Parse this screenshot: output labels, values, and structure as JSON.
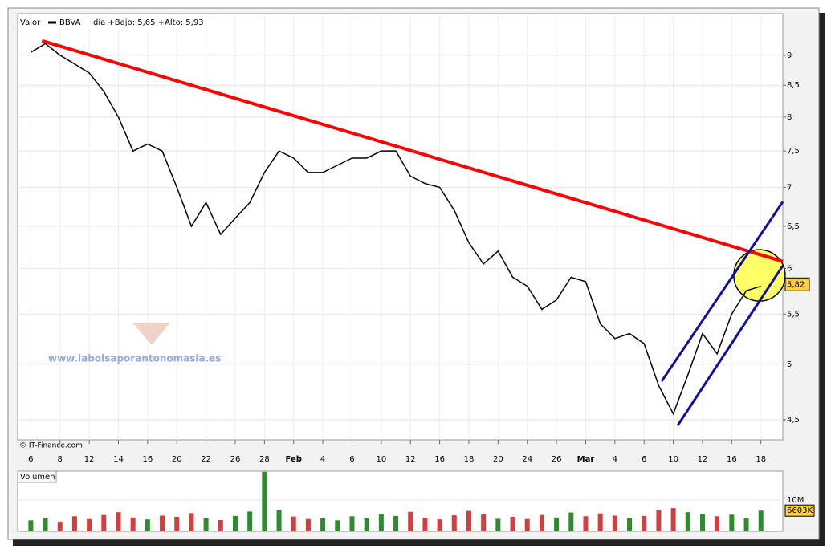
{
  "chart_data": [
    {
      "type": "line",
      "header_label": "Valor",
      "title": "BBVA",
      "subtitle": "día +Bajo: 5,65 +Alto: 5,93",
      "credit": "© IT-Finance.com",
      "watermark": "www.labolsaporantonomasia.es",
      "log_scale": true,
      "grid": true,
      "x": [
        0,
        1,
        2,
        3,
        4,
        5,
        6,
        7,
        8,
        9,
        10,
        11,
        12,
        13,
        14,
        15,
        16,
        17,
        18,
        19,
        20,
        21,
        22,
        23,
        24,
        25,
        26,
        27,
        28,
        29,
        30,
        31,
        32,
        33,
        34,
        35,
        36,
        37,
        38,
        39,
        40,
        41,
        42,
        43,
        44,
        45,
        46,
        47,
        48,
        49,
        50
      ],
      "xlim": [
        -0.9,
        51.5
      ],
      "xticks": [
        {
          "value": 0,
          "label": "6"
        },
        {
          "value": 2,
          "label": "8"
        },
        {
          "value": 4,
          "label": "12"
        },
        {
          "value": 6,
          "label": "14"
        },
        {
          "value": 8,
          "label": "16"
        },
        {
          "value": 10,
          "label": "20"
        },
        {
          "value": 12,
          "label": "22"
        },
        {
          "value": 14,
          "label": "26"
        },
        {
          "value": 16,
          "label": "28"
        },
        {
          "value": 18,
          "label": "Feb"
        },
        {
          "value": 20,
          "label": "4"
        },
        {
          "value": 22,
          "label": "6"
        },
        {
          "value": 24,
          "label": "10"
        },
        {
          "value": 26,
          "label": "12"
        },
        {
          "value": 28,
          "label": "16"
        },
        {
          "value": 30,
          "label": "18"
        },
        {
          "value": 32,
          "label": "20"
        },
        {
          "value": 34,
          "label": "24"
        },
        {
          "value": 36,
          "label": "26"
        },
        {
          "value": 38,
          "label": "Mar"
        },
        {
          "value": 40,
          "label": "4"
        },
        {
          "value": 42,
          "label": "6"
        },
        {
          "value": 44,
          "label": "10"
        },
        {
          "value": 46,
          "label": "12"
        },
        {
          "value": 48,
          "label": "16"
        },
        {
          "value": 50,
          "label": "18"
        }
      ],
      "ylim": [
        4.33,
        9.74
      ],
      "yticks": [
        {
          "value": 4.5,
          "label": "4,5"
        },
        5,
        {
          "value": 5.5,
          "label": "5,5"
        },
        6,
        {
          "value": 6.5,
          "label": "6,5"
        },
        7,
        {
          "value": 7.5,
          "label": "7,5"
        },
        8,
        {
          "value": 8.5,
          "label": "8,5"
        },
        9
      ],
      "series": [
        {
          "name": "BBVA",
          "color": "#000000",
          "values": [
            9.05,
            9.2,
            9.0,
            8.85,
            8.7,
            8.4,
            8.0,
            7.5,
            7.6,
            7.5,
            7.0,
            6.5,
            6.8,
            6.4,
            6.6,
            6.8,
            7.2,
            7.5,
            7.4,
            7.2,
            7.2,
            7.3,
            7.4,
            7.4,
            7.5,
            7.5,
            7.15,
            7.05,
            7.0,
            6.7,
            6.3,
            6.05,
            6.2,
            5.9,
            5.8,
            5.55,
            5.65,
            5.9,
            5.85,
            5.4,
            5.25,
            5.3,
            5.2,
            4.8,
            4.55,
            4.9,
            5.3,
            5.1,
            5.5,
            5.75,
            5.8
          ]
        }
      ],
      "last_value": {
        "value": 5.82,
        "label": "5,82"
      },
      "trendlines": [
        {
          "color": "#ff0000",
          "x": [
            0.77,
            51.5
          ],
          "y": [
            9.25,
            6.08
          ]
        },
        {
          "color": "#1010a0",
          "x": [
            43.2,
            51.5
          ],
          "y": [
            4.84,
            6.81
          ]
        },
        {
          "color": "#1010a0",
          "x": [
            44.3,
            51.5
          ],
          "y": [
            4.45,
            6.03
          ]
        }
      ],
      "highlight": {
        "x": 49.9,
        "y": 5.92,
        "color": "#ffff66"
      }
    },
    {
      "type": "bar",
      "title": "Volumen",
      "ylim": [
        0,
        19.2
      ],
      "yticks": [
        {
          "value": 10,
          "label": "10M"
        }
      ],
      "values": [
        3.5,
        4.2,
        3.1,
        4.8,
        3.9,
        5.2,
        6.1,
        4.4,
        3.8,
        5.0,
        4.6,
        5.8,
        4.1,
        3.6,
        4.9,
        6.3,
        19.0,
        6.8,
        4.7,
        3.9,
        4.2,
        3.5,
        4.8,
        4.1,
        5.5,
        4.9,
        6.2,
        4.3,
        3.8,
        5.1,
        6.5,
        5.4,
        4.0,
        4.6,
        3.9,
        5.2,
        4.4,
        6.0,
        4.8,
        5.7,
        5.0,
        4.3,
        4.9,
        6.8,
        7.4,
        6.1,
        5.5,
        4.8,
        5.3,
        4.2,
        6.603
      ],
      "up_color": "#2e8b2e",
      "down_color": "#d04040",
      "last_value": {
        "value": 6.603,
        "label": "6603K"
      }
    }
  ]
}
